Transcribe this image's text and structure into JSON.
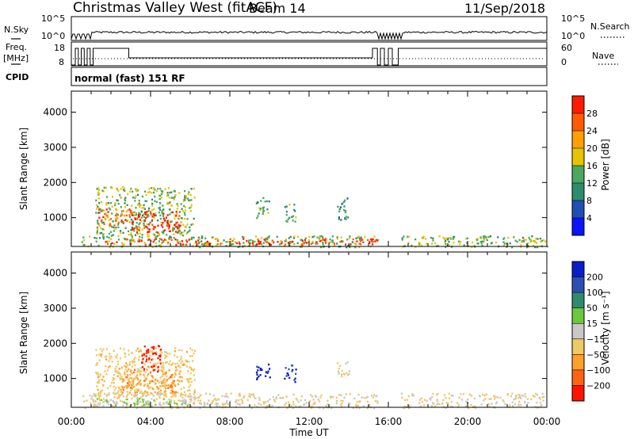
{
  "header": {
    "title": "Christmas Valley West (fitACF)",
    "beam": "Beam 14",
    "date": "11/Sep/2018"
  },
  "params": {
    "nsky_label": "N.Sky",
    "nsky_ticks": [
      "10^5",
      "10^0"
    ],
    "nsearch_label": "N.Search",
    "nsearch_ticks": [
      "10^5",
      "10^0"
    ],
    "freq_label_1": "Freq.",
    "freq_label_2": "[MHz]",
    "freq_ticks": [
      "18",
      "8"
    ],
    "nave_label": "Nave",
    "nave_ticks": [
      "60",
      "0"
    ],
    "cpid_label": "CPID",
    "cpid_value": "normal (fast) 151 RF"
  },
  "colors": {
    "power_scale": [
      "#0a14ff",
      "#1f4fb4",
      "#2e8c6e",
      "#4aa860",
      "#e8c400",
      "#ffa000",
      "#ff5a00",
      "#ff1a00"
    ],
    "velocity_scale": [
      "#0a1ec8",
      "#2a50b4",
      "#2e8c6e",
      "#6cc83c",
      "#c8c8c8",
      "#f0c864",
      "#ffa028",
      "#ff6414",
      "#ff1400"
    ],
    "ground_scatter": "#9c9c9c"
  },
  "chart_data": [
    {
      "type": "heatmap",
      "name": "power-panel",
      "xlabel": "",
      "ylabel": "Slant Range [km]",
      "x_range_hours": [
        0,
        24
      ],
      "ylim": [
        180,
        4600
      ],
      "y_ticks": [
        1000,
        2000,
        3000,
        4000
      ],
      "x_tick_labels": [
        "00:00",
        "04:00",
        "08:00",
        "12:00",
        "16:00",
        "20:00",
        "00:00"
      ],
      "colorbar": {
        "label": "Power [dB]",
        "ticks": [
          "28",
          "24",
          "20",
          "16",
          "12",
          "8",
          "4"
        ],
        "range": [
          0,
          30
        ]
      },
      "regions": [
        {
          "t": [
            1.2,
            6.2
          ],
          "r": [
            500,
            1900
          ],
          "value": 14
        },
        {
          "t": [
            3.0,
            5.5
          ],
          "r": [
            600,
            1200
          ],
          "value": 28
        },
        {
          "t": [
            1.3,
            3.0
          ],
          "r": [
            800,
            1300
          ],
          "value": 24
        },
        {
          "t": [
            9.3,
            10.0
          ],
          "r": [
            1000,
            1600
          ],
          "value": 12
        },
        {
          "t": [
            10.7,
            11.3
          ],
          "r": [
            900,
            1400
          ],
          "value": 12
        },
        {
          "t": [
            13.4,
            14.0
          ],
          "r": [
            900,
            1600
          ],
          "value": 10
        },
        {
          "t": [
            0.5,
            24
          ],
          "r": [
            180,
            500
          ],
          "value": 14
        },
        {
          "t": [
            1.0,
            15.5
          ],
          "r": [
            250,
            420
          ],
          "value": 26
        }
      ]
    },
    {
      "type": "heatmap",
      "name": "velocity-panel",
      "xlabel": "Time UT",
      "ylabel": "Slant Range [km]",
      "x_range_hours": [
        0,
        24
      ],
      "ylim": [
        180,
        4600
      ],
      "y_ticks": [
        1000,
        2000,
        3000,
        4000
      ],
      "x_tick_labels": [
        "00:00",
        "04:00",
        "08:00",
        "12:00",
        "16:00",
        "20:00",
        "00:00"
      ],
      "colorbar": {
        "label": "Velocity [m s⁻¹]",
        "ticks": [
          "200",
          "100",
          "50",
          "15",
          "−15",
          "−50",
          "−100",
          "−200"
        ],
        "range": [
          -250,
          250
        ]
      },
      "regions": [
        {
          "t": [
            1.2,
            6.2
          ],
          "r": [
            500,
            1900
          ],
          "value": -60
        },
        {
          "t": [
            2.5,
            5.5
          ],
          "r": [
            600,
            1300
          ],
          "value": -120
        },
        {
          "t": [
            3.5,
            4.5
          ],
          "r": [
            1200,
            2000
          ],
          "value": -220
        },
        {
          "t": [
            9.3,
            10.0
          ],
          "r": [
            1000,
            1500
          ],
          "value": 220
        },
        {
          "t": [
            10.7,
            11.3
          ],
          "r": [
            900,
            1400
          ],
          "value": 200
        },
        {
          "t": [
            13.4,
            14.0
          ],
          "r": [
            1000,
            1500
          ],
          "value": -40
        },
        {
          "t": [
            0.5,
            24
          ],
          "r": [
            180,
            600
          ],
          "value": -30
        },
        {
          "t": [
            1.0,
            6.0
          ],
          "r": [
            250,
            450
          ],
          "value": 40
        }
      ]
    }
  ]
}
